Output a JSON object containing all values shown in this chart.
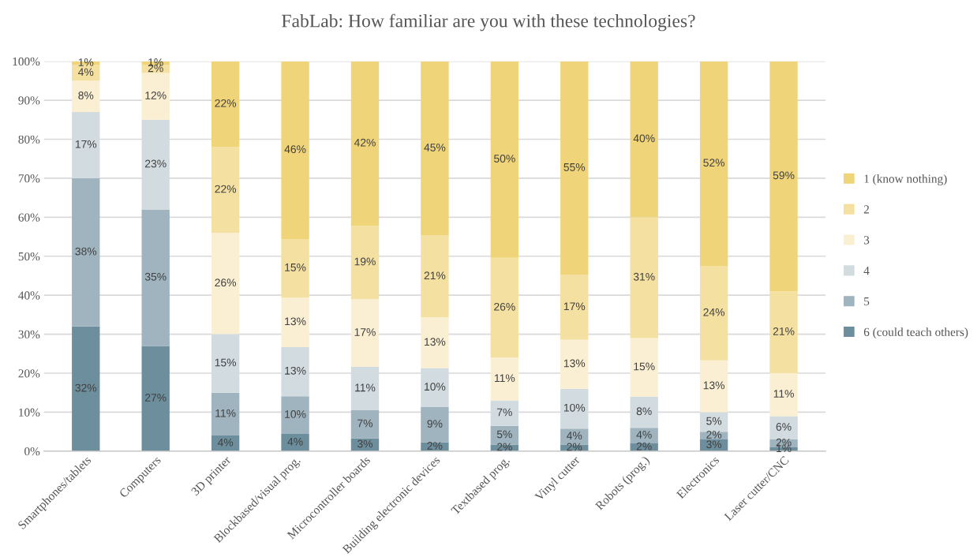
{
  "chart_data": {
    "type": "bar",
    "stacked": true,
    "title": "FabLab: How familiar are you with these technologies?",
    "categories": [
      "Smartphones/tablets",
      "Computers",
      "3D printer",
      "Blockbased/visual prog.",
      "Microcontroller boards",
      "Building electronic devices",
      "Textbased prog.",
      "Vinyl cutter",
      "Robots (prog.)",
      "Electronics",
      "Laser cutter/CNC"
    ],
    "series": [
      {
        "name": "6 (could teach others)",
        "color": "#6d8e9c",
        "values": [
          32,
          27,
          4,
          4.4,
          3.3,
          2.3,
          1.7,
          1.7,
          2,
          3,
          1
        ],
        "value_labels": [
          "32%",
          "27%",
          "4%",
          "4%",
          "3%",
          "2%",
          "2%",
          "2%",
          "2%",
          "3%",
          "1%"
        ]
      },
      {
        "name": "5",
        "color": "#9fb4bf",
        "values": [
          38,
          35,
          11,
          9.7,
          7.2,
          9,
          4.8,
          4.1,
          4,
          2,
          2
        ],
        "value_labels": [
          "38%",
          "35%",
          "11%",
          "10%",
          "7%",
          "9%",
          "5%",
          "4%",
          "4%",
          "2%",
          "2%"
        ]
      },
      {
        "name": "4",
        "color": "#d2dce0",
        "values": [
          17,
          23,
          15,
          12.6,
          11.1,
          10,
          6.5,
          10.2,
          8,
          5,
          6
        ],
        "value_labels": [
          "17%",
          "23%",
          "15%",
          "13%",
          "11%",
          "10%",
          "7%",
          "10%",
          "8%",
          "5%",
          "6%"
        ]
      },
      {
        "name": "3",
        "color": "#faefd2",
        "values": [
          8,
          12,
          26,
          12.7,
          17.4,
          13,
          11,
          12.6,
          15,
          13.3,
          11
        ],
        "value_labels": [
          "8%",
          "12%",
          "26%",
          "13%",
          "17%",
          "13%",
          "11%",
          "13%",
          "15%",
          "13%",
          "11%"
        ]
      },
      {
        "name": "2",
        "color": "#f4e0a0",
        "values": [
          4,
          2,
          22,
          15,
          18.8,
          21,
          25.6,
          16.6,
          31,
          24.2,
          21
        ],
        "value_labels": [
          "4%",
          "2%",
          "22%",
          "15%",
          "19%",
          "21%",
          "26%",
          "17%",
          "31%",
          "24%",
          "21%"
        ]
      },
      {
        "name": "1 (know nothing)",
        "color": "#f0d479",
        "values": [
          1,
          1,
          22,
          45.6,
          42.2,
          44.7,
          50.4,
          54.8,
          40,
          52.5,
          59
        ],
        "value_labels": [
          "1%",
          "1%",
          "22%",
          "46%",
          "42%",
          "45%",
          "50%",
          "55%",
          "40%",
          "52%",
          "59%"
        ]
      }
    ],
    "ylim": [
      0,
      100
    ],
    "yticks": [
      {
        "value": 0,
        "label": "0%"
      },
      {
        "value": 10,
        "label": "10%"
      },
      {
        "value": 20,
        "label": "20%"
      },
      {
        "value": 30,
        "label": "30%"
      },
      {
        "value": 40,
        "label": "40%"
      },
      {
        "value": 50,
        "label": "50%"
      },
      {
        "value": 60,
        "label": "60%"
      },
      {
        "value": 70,
        "label": "70%"
      },
      {
        "value": 80,
        "label": "80%"
      },
      {
        "value": 90,
        "label": "90%"
      },
      {
        "value": 100,
        "label": "100%"
      }
    ],
    "grid": "y",
    "legend": "right"
  }
}
